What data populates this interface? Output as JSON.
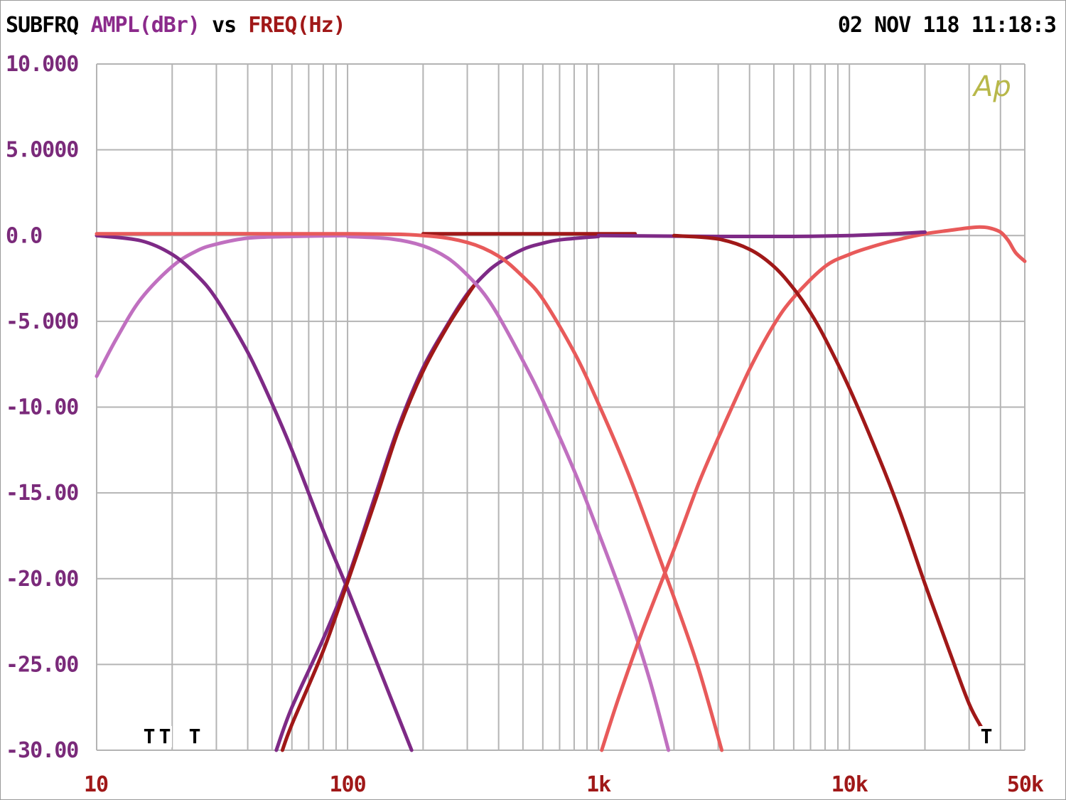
{
  "header": {
    "title": "SUBFRQ",
    "y_label": "AMPL(dBr)",
    "vs": "vs",
    "x_label": "FREQ(Hz)",
    "timestamp": "02 NOV 118 11:18:3"
  },
  "colors": {
    "y_label": "#8b2a8b",
    "x_label": "#a01818",
    "grid": "#b4b4b4",
    "y_ticks": "#7a2a7a",
    "x_ticks": "#a01818",
    "logo": "#b8b84a"
  },
  "logo": "Ap",
  "markers": [
    "T",
    "T",
    "T",
    "T"
  ],
  "chart_data": {
    "type": "line",
    "x_scale": "log",
    "xlim": [
      10,
      50000
    ],
    "ylim": [
      -30,
      10
    ],
    "grid": true,
    "x_ticks": [
      {
        "value": 10,
        "label": "10"
      },
      {
        "value": 100,
        "label": "100"
      },
      {
        "value": 1000,
        "label": "1k"
      },
      {
        "value": 10000,
        "label": "10k"
      },
      {
        "value": 50000,
        "label": "50k"
      }
    ],
    "y_ticks": [
      {
        "value": 10,
        "label": "10.000"
      },
      {
        "value": 5,
        "label": "5.0000"
      },
      {
        "value": 0,
        "label": "0.0"
      },
      {
        "value": -5,
        "label": "-5.000"
      },
      {
        "value": -10,
        "label": "-10.00"
      },
      {
        "value": -15,
        "label": "-15.00"
      },
      {
        "value": -20,
        "label": "-20.00"
      },
      {
        "value": -25,
        "label": "-25.00"
      },
      {
        "value": -30,
        "label": "-30.00"
      }
    ],
    "series": [
      {
        "color": "#c070c0",
        "x": [
          10,
          12,
          15,
          20,
          25,
          30,
          40,
          60,
          100
        ],
        "y": [
          -8.2,
          -6,
          -3.7,
          -1.8,
          -0.9,
          -0.5,
          -0.15,
          -0.05,
          0
        ]
      },
      {
        "color": "#7e2a86",
        "x": [
          10,
          15,
          20,
          25,
          30,
          40,
          50,
          60,
          80,
          100,
          130,
          180
        ],
        "y": [
          0,
          -0.3,
          -1.1,
          -2.3,
          -3.7,
          -6.8,
          -9.8,
          -12.5,
          -17.2,
          -20.6,
          -24.8,
          -30
        ]
      },
      {
        "color": "#7e2a86",
        "x": [
          52,
          60,
          80,
          100,
          130,
          160,
          200,
          250,
          300,
          350,
          400,
          500,
          600,
          700,
          1000
        ],
        "y": [
          -30,
          -27.5,
          -23.5,
          -20,
          -15,
          -11.1,
          -7.7,
          -5.2,
          -3.4,
          -2.3,
          -1.6,
          -0.8,
          -0.45,
          -0.25,
          -0.05
        ]
      },
      {
        "color": "#a01818",
        "x": [
          55,
          60,
          80,
          100,
          130,
          160,
          200,
          250,
          300,
          320
        ],
        "y": [
          -30,
          -28.5,
          -24.2,
          -20.2,
          -15.3,
          -11.3,
          -7.9,
          -5.3,
          -3.5,
          -2.9
        ]
      },
      {
        "color": "#c070c0",
        "x": [
          100,
          150,
          200,
          250,
          300,
          350,
          400,
          500,
          600,
          800,
          1000,
          1300,
          1600,
          1900
        ],
        "y": [
          -0.05,
          -0.2,
          -0.6,
          -1.3,
          -2.3,
          -3.4,
          -4.7,
          -7.3,
          -9.6,
          -13.7,
          -17.3,
          -21.8,
          -25.9,
          -30
        ]
      },
      {
        "color": "#a01818",
        "x": [
          200,
          500,
          1000,
          1400
        ],
        "y": [
          0.1,
          0.1,
          0.1,
          0.1
        ]
      },
      {
        "color": "#e85a5a",
        "x": [
          10,
          100,
          200,
          300,
          400,
          500,
          600,
          800,
          1000,
          1300,
          1600,
          2000,
          2500,
          3100
        ],
        "y": [
          0.1,
          0.1,
          0,
          -0.4,
          -1.2,
          -2.4,
          -3.7,
          -6.8,
          -9.8,
          -13.7,
          -17.2,
          -21.1,
          -25.2,
          -30
        ]
      },
      {
        "color": "#e85a5a",
        "x": [
          1030,
          1200,
          1500,
          2000,
          2500,
          3000,
          4000,
          5000,
          6000,
          8000,
          10000,
          12000,
          15000,
          20000,
          25000,
          30000,
          33000,
          36000,
          40000,
          43000,
          46000,
          50000
        ],
        "y": [
          -30,
          -27,
          -23,
          -18.3,
          -14.5,
          -11.8,
          -7.8,
          -5.2,
          -3.6,
          -1.8,
          -1.1,
          -0.7,
          -0.3,
          0.1,
          0.3,
          0.45,
          0.5,
          0.45,
          0.2,
          -0.3,
          -1.0,
          -1.5
        ]
      },
      {
        "color": "#7e2a86",
        "x": [
          1000,
          3000,
          6000,
          10000,
          15000,
          20000
        ],
        "y": [
          0,
          -0.05,
          -0.05,
          0,
          0.1,
          0.2
        ]
      },
      {
        "color": "#a01818",
        "x": [
          2000,
          3000,
          4000,
          5000,
          6000,
          7000,
          8000,
          10000,
          13000,
          16000,
          20000,
          25000,
          30000,
          34000
        ],
        "y": [
          0,
          -0.2,
          -0.8,
          -1.8,
          -3.1,
          -4.5,
          -6,
          -8.9,
          -12.8,
          -16.2,
          -20.3,
          -24.2,
          -27.3,
          -28.8
        ]
      }
    ]
  }
}
